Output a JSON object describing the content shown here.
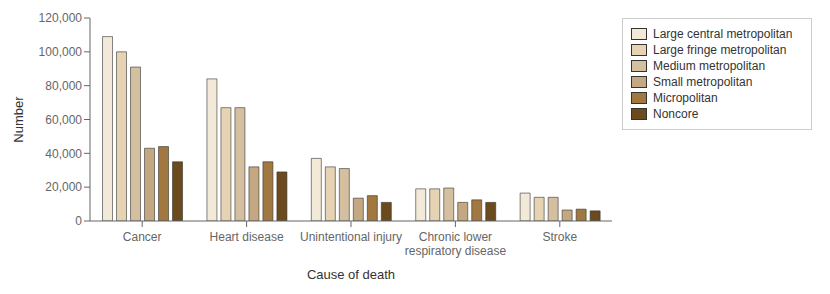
{
  "chart_data": {
    "type": "bar",
    "xlabel": "Cause of death",
    "ylabel": "Number",
    "categories": [
      "Cancer",
      "Heart disease",
      "Unintentional injury",
      "Chronic lower\nrespiratory disease",
      "Stroke"
    ],
    "series": [
      {
        "name": "Large central metropolitan",
        "color": "#f3e9d8",
        "values": [
          109000,
          84000,
          37000,
          19000,
          16500
        ]
      },
      {
        "name": "Large fringe metropolitan",
        "color": "#e6d3b3",
        "values": [
          100000,
          67000,
          32000,
          19000,
          14000
        ]
      },
      {
        "name": "Medium metropolitan",
        "color": "#d4bfa0",
        "values": [
          91000,
          67000,
          31000,
          19500,
          14000
        ]
      },
      {
        "name": "Small metropolitan",
        "color": "#c4a882",
        "values": [
          43000,
          32000,
          13500,
          11000,
          6500
        ]
      },
      {
        "name": "Micropolitan",
        "color": "#a07840",
        "values": [
          44000,
          35000,
          15000,
          12500,
          7000
        ]
      },
      {
        "name": "Noncore",
        "color": "#6b4a1e",
        "values": [
          35000,
          29000,
          11000,
          11000,
          6000
        ]
      }
    ],
    "ylim": [
      0,
      120000
    ],
    "yticks": [
      0,
      {
        "value": 20000,
        "label": "20,000"
      },
      {
        "value": 40000,
        "label": "40,000"
      },
      {
        "value": 60000,
        "label": "60,000"
      },
      {
        "value": 80000,
        "label": "80,000"
      },
      {
        "value": 100000,
        "label": "100,000"
      },
      {
        "value": 120000,
        "label": "120,000"
      }
    ],
    "grid": false,
    "legend": "upper right"
  }
}
